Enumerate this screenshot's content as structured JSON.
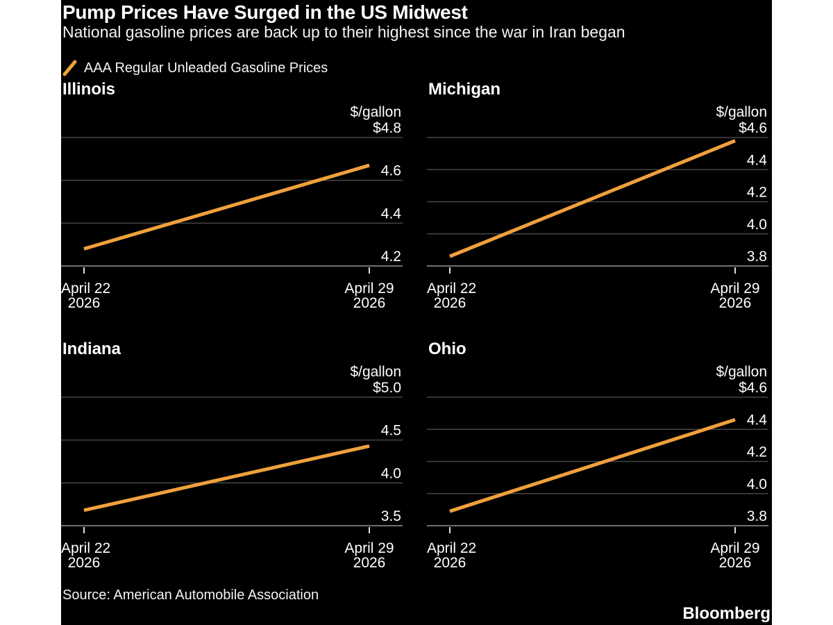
{
  "header": {
    "title": "Pump Prices Have Surged in the US Midwest",
    "subtitle": "National gasoline prices are back up to their highest since the war in Iran began"
  },
  "legend": {
    "label": "AAA Regular Unleaded Gasoline Prices",
    "color": "#F0A03C"
  },
  "footer": {
    "source": "Source: American Automobile Association",
    "brand": "Bloomberg"
  },
  "chart_data": [
    {
      "type": "line",
      "title": "Illinois",
      "unit_label": "$/gallon",
      "series_name": "AAA Regular Unleaded Gasoline Prices",
      "x": [
        "April 22, 2026",
        "April 29, 2026"
      ],
      "values": [
        4.28,
        4.67
      ],
      "yticks": [
        4.2,
        4.4,
        4.6,
        4.8
      ],
      "ytick_labels": [
        "4.2",
        "4.4",
        "4.6",
        "$4.8"
      ],
      "ylim": [
        4.2,
        4.8
      ],
      "x_labels": [
        [
          "April 22",
          "2026"
        ],
        [
          "April 29",
          "2026"
        ]
      ]
    },
    {
      "type": "line",
      "title": "Michigan",
      "unit_label": "$/gallon",
      "series_name": "AAA Regular Unleaded Gasoline Prices",
      "x": [
        "April 22, 2026",
        "April 29, 2026"
      ],
      "values": [
        3.86,
        4.58
      ],
      "yticks": [
        3.8,
        4.0,
        4.2,
        4.4,
        4.6
      ],
      "ytick_labels": [
        "3.8",
        "4.0",
        "4.2",
        "4.4",
        "$4.6"
      ],
      "ylim": [
        3.8,
        4.6
      ],
      "x_labels": [
        [
          "April 22",
          "2026"
        ],
        [
          "April 29",
          "2026"
        ]
      ]
    },
    {
      "type": "line",
      "title": "Indiana",
      "unit_label": "$/gallon",
      "series_name": "AAA Regular Unleaded Gasoline Prices",
      "x": [
        "April 22, 2026",
        "April 29, 2026"
      ],
      "values": [
        3.68,
        4.43
      ],
      "yticks": [
        3.5,
        4.0,
        4.5,
        5.0
      ],
      "ytick_labels": [
        "3.5",
        "4.0",
        "4.5",
        "$5.0"
      ],
      "ylim": [
        3.5,
        5.0
      ],
      "x_labels": [
        [
          "April 22",
          "2026"
        ],
        [
          "April 29",
          "2026"
        ]
      ]
    },
    {
      "type": "line",
      "title": "Ohio",
      "unit_label": "$/gallon",
      "series_name": "AAA Regular Unleaded Gasoline Prices",
      "x": [
        "April 22, 2026",
        "April 29, 2026"
      ],
      "values": [
        3.89,
        4.46
      ],
      "yticks": [
        3.8,
        4.0,
        4.2,
        4.4,
        4.6
      ],
      "ytick_labels": [
        "3.8",
        "4.0",
        "4.2",
        "4.4",
        "$4.6"
      ],
      "ylim": [
        3.8,
        4.6
      ],
      "x_labels": [
        [
          "April 22",
          "2026"
        ],
        [
          "April 29",
          "2026"
        ]
      ]
    }
  ]
}
